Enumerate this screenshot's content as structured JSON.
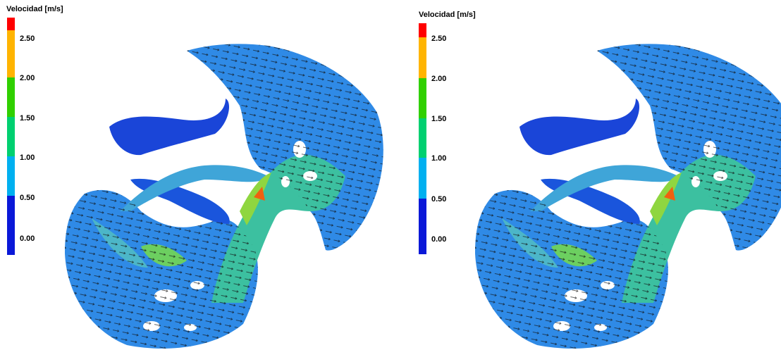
{
  "panels": [
    {
      "legend": {
        "title": "Velocidad  [m/s]",
        "ticks": [
          "2.50",
          "2.00",
          "1.50",
          "1.00",
          "0.50",
          "0.00"
        ]
      }
    },
    {
      "legend": {
        "title": "Velocidad  [m/s]",
        "ticks": [
          "2.50",
          "2.00",
          "1.50",
          "1.00",
          "0.50",
          "0.00"
        ]
      }
    }
  ]
}
